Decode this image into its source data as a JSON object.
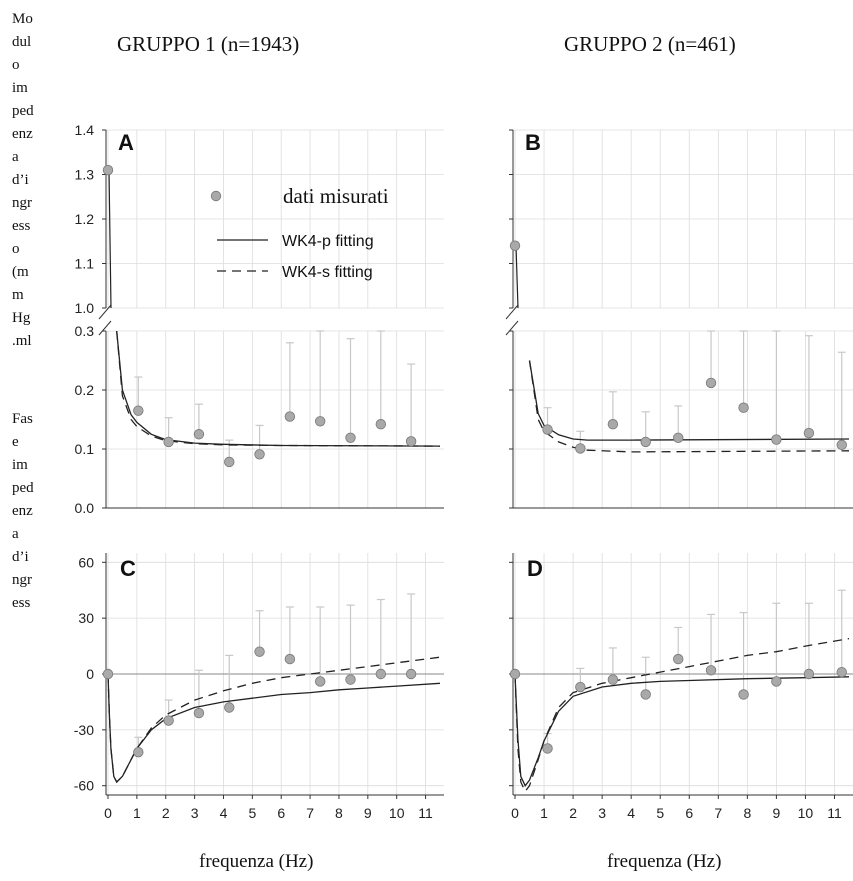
{
  "y_labels": {
    "magnitude_lines": [
      "Mo",
      "dul",
      "o",
      "im",
      "ped",
      "enz",
      "a",
      "d’i",
      "ngr",
      "ess",
      "o",
      "(m",
      "m",
      "Hg",
      ".ml"
    ],
    "phase_lines": [
      "Fas",
      "e",
      "im",
      "ped",
      "enz",
      "a",
      "d’i",
      "ngr",
      "ess"
    ]
  },
  "group_titles": [
    "GRUPPO 1 (n=1943)",
    "GRUPPO 2 (n=461)"
  ],
  "xlabel": "frequenza (Hz)",
  "legend": {
    "measured": "dati misurati",
    "fit_p": "WK4-p fitting",
    "fit_s": "WK4-s fitting"
  },
  "colors": {
    "points": "#a9a9a9",
    "errorbar": "#c8c8c8",
    "curve": "#222222",
    "grid": "#dcdcdc"
  },
  "chart_data": [
    {
      "panel": "A",
      "type": "scatter",
      "xlim": [
        0,
        11.5
      ],
      "xticks": [
        0,
        1,
        2,
        3,
        4,
        5,
        6,
        7,
        8,
        9,
        10,
        11
      ],
      "ylim_upper": [
        1.0,
        1.4
      ],
      "yticks_upper": [
        1.0,
        1.1,
        1.2,
        1.3,
        1.4
      ],
      "ylim_lower": [
        0.0,
        0.3
      ],
      "yticks_lower": [
        0.0,
        0.1,
        0.2,
        0.3
      ],
      "x": [
        0,
        1.05,
        2.1,
        3.15,
        4.2,
        5.25,
        6.3,
        7.35,
        8.4,
        9.45,
        10.5
      ],
      "y": [
        1.31,
        0.165,
        0.112,
        0.125,
        0.078,
        0.091,
        0.155,
        0.147,
        0.119,
        0.142,
        0.113
      ],
      "err_upper": [
        1.31,
        0.222,
        0.153,
        0.176,
        0.115,
        0.14,
        0.28,
        0.3,
        0.287,
        0.3,
        0.244
      ],
      "fit_p": [
        [
          0.1,
          0.9
        ],
        [
          0.2,
          0.5
        ],
        [
          0.3,
          0.3
        ],
        [
          0.5,
          0.2
        ],
        [
          0.8,
          0.158
        ],
        [
          1.0,
          0.145
        ],
        [
          1.5,
          0.125
        ],
        [
          2,
          0.116
        ],
        [
          3,
          0.11
        ],
        [
          4,
          0.108
        ],
        [
          6,
          0.106
        ],
        [
          11.5,
          0.105
        ]
      ],
      "fit_s": [
        [
          0.1,
          0.9
        ],
        [
          0.2,
          0.5
        ],
        [
          0.3,
          0.3
        ],
        [
          0.5,
          0.19
        ],
        [
          0.8,
          0.15
        ],
        [
          1.0,
          0.138
        ],
        [
          1.5,
          0.122
        ],
        [
          2,
          0.114
        ],
        [
          3,
          0.109
        ],
        [
          4,
          0.107
        ],
        [
          6,
          0.106
        ],
        [
          11.5,
          0.105
        ]
      ]
    },
    {
      "panel": "B",
      "type": "scatter",
      "xlim": [
        0,
        11.5
      ],
      "xticks": [
        0,
        1,
        2,
        3,
        4,
        5,
        6,
        7,
        8,
        9,
        10,
        11
      ],
      "ylim_upper": [
        1.0,
        1.4
      ],
      "yticks_upper": [
        1.0,
        1.1,
        1.2,
        1.3,
        1.4
      ],
      "ylim_lower": [
        0.0,
        0.3
      ],
      "yticks_lower": [
        0.0,
        0.1,
        0.2,
        0.3
      ],
      "x": [
        0,
        1.12,
        2.25,
        3.37,
        4.5,
        5.62,
        6.75,
        7.87,
        9.0,
        10.12,
        11.25
      ],
      "y": [
        1.14,
        0.133,
        0.101,
        0.142,
        0.112,
        0.119,
        0.212,
        0.17,
        0.116,
        0.127,
        0.107
      ],
      "err_upper": [
        1.14,
        0.17,
        0.13,
        0.197,
        0.163,
        0.173,
        0.3,
        0.3,
        0.3,
        0.292,
        0.264
      ],
      "fit_p": [
        [
          0.2,
          0.9
        ],
        [
          0.35,
          0.4
        ],
        [
          0.5,
          0.25
        ],
        [
          0.8,
          0.16
        ],
        [
          1.0,
          0.14
        ],
        [
          1.5,
          0.124
        ],
        [
          2,
          0.117
        ],
        [
          2.5,
          0.115
        ],
        [
          4,
          0.115
        ],
        [
          11.5,
          0.117
        ]
      ],
      "fit_s": [
        [
          0.2,
          0.9
        ],
        [
          0.35,
          0.4
        ],
        [
          0.5,
          0.25
        ],
        [
          0.8,
          0.15
        ],
        [
          1.0,
          0.13
        ],
        [
          1.5,
          0.112
        ],
        [
          2,
          0.103
        ],
        [
          2.5,
          0.098
        ],
        [
          4,
          0.095
        ],
        [
          11.5,
          0.097
        ]
      ]
    },
    {
      "panel": "C",
      "type": "scatter",
      "xlim": [
        0,
        11.5
      ],
      "xticks": [
        0,
        1,
        2,
        3,
        4,
        5,
        6,
        7,
        8,
        9,
        10,
        11
      ],
      "ylim": [
        -65,
        65
      ],
      "yticks": [
        -60,
        -30,
        0,
        30,
        60
      ],
      "x": [
        0,
        1.05,
        2.1,
        3.15,
        4.2,
        5.25,
        6.3,
        7.35,
        8.4,
        9.45,
        10.5
      ],
      "y": [
        0,
        -42,
        -25,
        -21,
        -18,
        12,
        8,
        -4,
        -3,
        0,
        0
      ],
      "err_upper": [
        0,
        -34,
        -14,
        2,
        10,
        34,
        36,
        36,
        37,
        40,
        43
      ],
      "fit_p": [
        [
          0,
          0
        ],
        [
          0.05,
          -22
        ],
        [
          0.1,
          -40
        ],
        [
          0.2,
          -55
        ],
        [
          0.3,
          -58
        ],
        [
          0.5,
          -55
        ],
        [
          0.8,
          -46
        ],
        [
          1.0,
          -40
        ],
        [
          1.5,
          -30
        ],
        [
          2,
          -24
        ],
        [
          3,
          -18
        ],
        [
          4,
          -15
        ],
        [
          5,
          -13
        ],
        [
          6,
          -11
        ],
        [
          7,
          -10
        ],
        [
          8,
          -8.5
        ],
        [
          9,
          -7.5
        ],
        [
          10,
          -6.5
        ],
        [
          11.5,
          -5
        ]
      ],
      "fit_s": [
        [
          0,
          0
        ],
        [
          0.05,
          -22
        ],
        [
          0.1,
          -40
        ],
        [
          0.2,
          -55
        ],
        [
          0.3,
          -58
        ],
        [
          0.5,
          -55
        ],
        [
          0.8,
          -46
        ],
        [
          1.0,
          -40
        ],
        [
          1.5,
          -29
        ],
        [
          2,
          -22
        ],
        [
          3,
          -14
        ],
        [
          4,
          -9
        ],
        [
          5,
          -5
        ],
        [
          6,
          -2
        ],
        [
          7,
          0
        ],
        [
          8,
          2
        ],
        [
          9,
          4
        ],
        [
          10,
          6
        ],
        [
          11.5,
          9
        ]
      ]
    },
    {
      "panel": "D",
      "type": "scatter",
      "xlim": [
        0,
        11.5
      ],
      "xticks": [
        0,
        1,
        2,
        3,
        4,
        5,
        6,
        7,
        8,
        9,
        10,
        11
      ],
      "ylim": [
        -65,
        65
      ],
      "yticks": [
        -60,
        -30,
        0,
        30,
        60
      ],
      "x": [
        0,
        1.12,
        2.25,
        3.37,
        4.5,
        5.62,
        6.75,
        7.87,
        9.0,
        10.12,
        11.25
      ],
      "y": [
        0,
        -40,
        -7,
        -3,
        -11,
        8,
        2,
        -11,
        -4,
        0,
        1
      ],
      "err_upper": [
        0,
        -32,
        3,
        14,
        9,
        25,
        32,
        33,
        38,
        38,
        45
      ],
      "fit_p": [
        [
          0,
          0
        ],
        [
          0.1,
          -35
        ],
        [
          0.2,
          -55
        ],
        [
          0.35,
          -60
        ],
        [
          0.5,
          -57
        ],
        [
          0.8,
          -45
        ],
        [
          1.0,
          -36
        ],
        [
          1.5,
          -20
        ],
        [
          2,
          -12
        ],
        [
          3,
          -7
        ],
        [
          4,
          -5
        ],
        [
          5,
          -4
        ],
        [
          6,
          -3.5
        ],
        [
          8,
          -2.5
        ],
        [
          10,
          -2
        ],
        [
          11.5,
          -1.5
        ]
      ],
      "fit_s": [
        [
          0,
          0
        ],
        [
          0.1,
          -40
        ],
        [
          0.2,
          -58
        ],
        [
          0.35,
          -63
        ],
        [
          0.5,
          -60
        ],
        [
          0.8,
          -46
        ],
        [
          1.0,
          -36
        ],
        [
          1.5,
          -18
        ],
        [
          2,
          -10
        ],
        [
          3,
          -5
        ],
        [
          4,
          -2
        ],
        [
          5,
          1
        ],
        [
          6,
          4
        ],
        [
          7,
          7
        ],
        [
          8,
          10
        ],
        [
          9,
          12
        ],
        [
          10,
          15
        ],
        [
          11.5,
          19
        ]
      ]
    }
  ]
}
